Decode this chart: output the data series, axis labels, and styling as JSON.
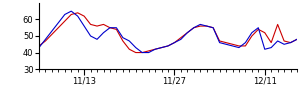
{
  "title": "",
  "xlim": [
    0,
    40
  ],
  "ylim": [
    30,
    70
  ],
  "yticks": [
    30,
    40,
    50,
    60
  ],
  "xtick_positions": [
    7,
    21,
    35
  ],
  "xtick_labels": [
    "11/13",
    "11/27",
    "12/11"
  ],
  "red_line": [
    44,
    47,
    51,
    55,
    59,
    63,
    64,
    62,
    57,
    56,
    57,
    55,
    54,
    47,
    42,
    40,
    40,
    41,
    42,
    43,
    44,
    46,
    49,
    52,
    55,
    56,
    56,
    55,
    47,
    46,
    45,
    44,
    44,
    50,
    54,
    52,
    46,
    57,
    47,
    46,
    48
  ],
  "blue_line": [
    43,
    48,
    53,
    58,
    63,
    65,
    62,
    56,
    50,
    48,
    52,
    55,
    55,
    49,
    47,
    43,
    40,
    40,
    42,
    43,
    44,
    46,
    48,
    52,
    55,
    57,
    56,
    55,
    46,
    45,
    44,
    43,
    46,
    52,
    55,
    42,
    43,
    47,
    45,
    46,
    48
  ],
  "red_color": "#cc0000",
  "blue_color": "#0000cc",
  "linewidth": 0.8,
  "bg_color": "#ffffff",
  "tick_fontsize": 6
}
